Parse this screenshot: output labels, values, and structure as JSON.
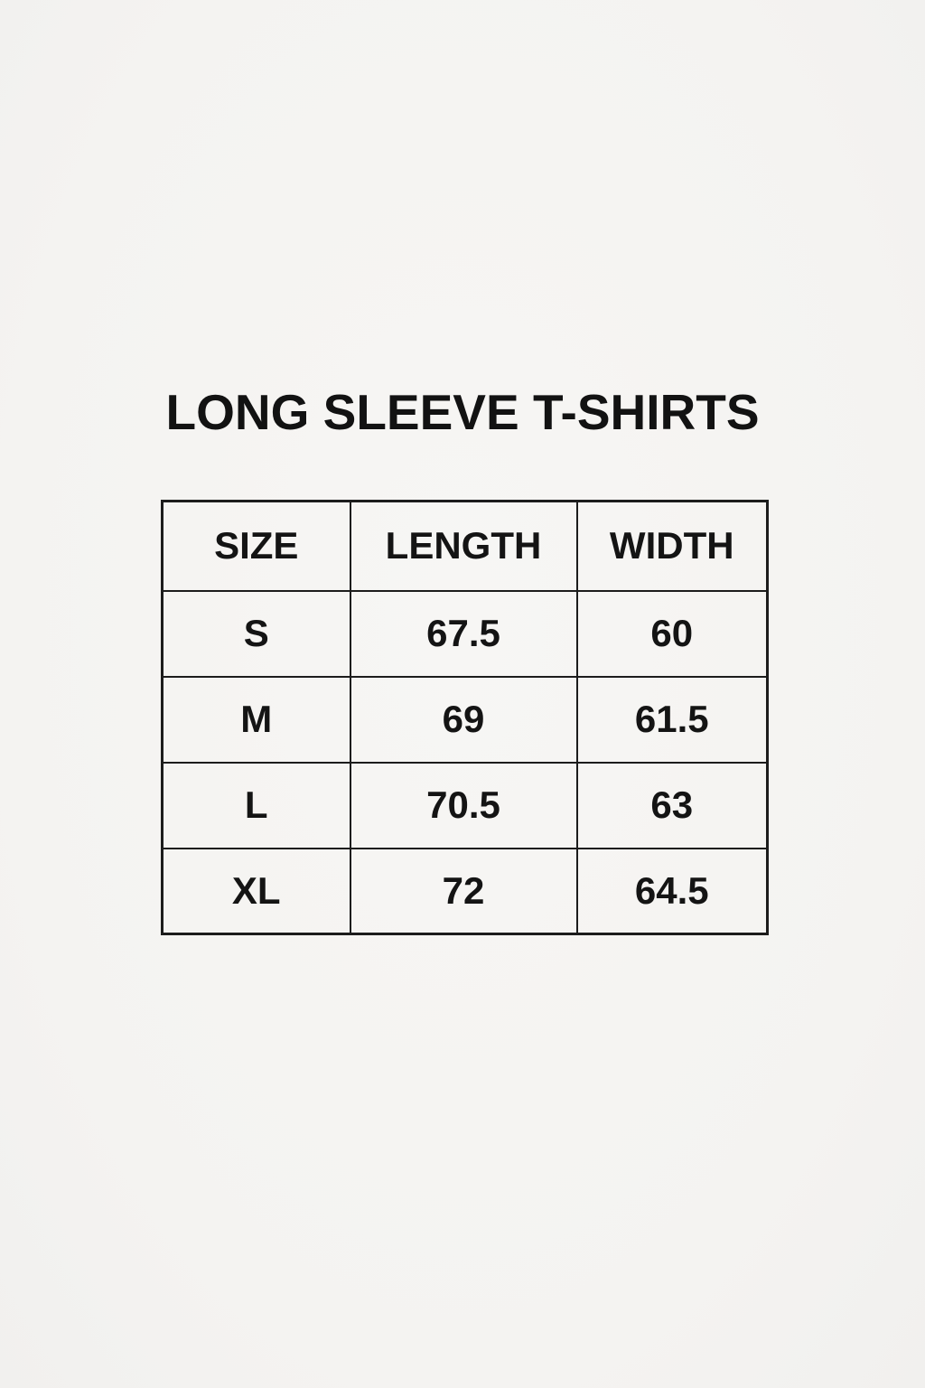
{
  "page": {
    "background_color": "#f5f4f2",
    "text_color": "#141414",
    "line_color": "#1c1c1c"
  },
  "chart_data": {
    "type": "table",
    "title": "LONG SLEEVE T-SHIRTS",
    "columns": [
      "SIZE",
      "LENGTH",
      "WIDTH"
    ],
    "rows": [
      [
        "S",
        "67.5",
        "60"
      ],
      [
        "M",
        "69",
        "61.5"
      ],
      [
        "L",
        "70.5",
        "63"
      ],
      [
        "XL",
        "72",
        "64.5"
      ]
    ]
  }
}
